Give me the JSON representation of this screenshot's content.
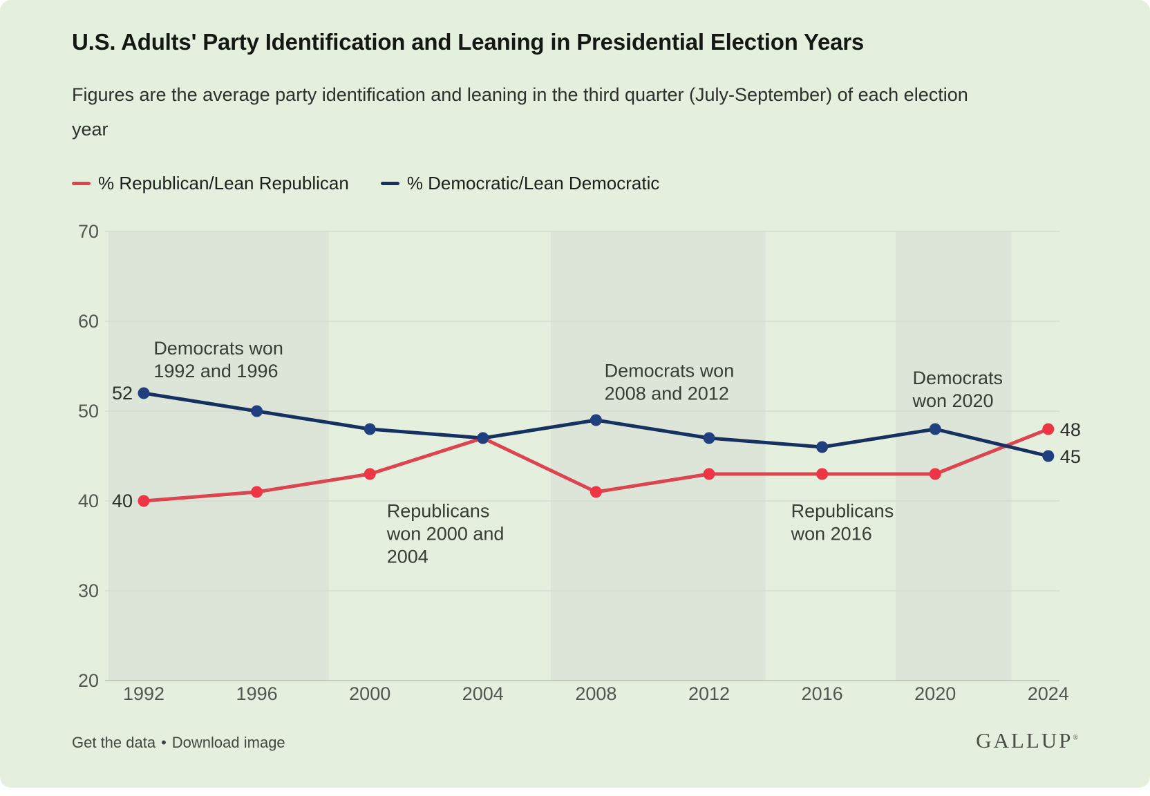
{
  "header": {
    "title": "U.S. Adults' Party Identification and Leaning in Presidential Election Years",
    "subtitle": "Figures are the average party identification and leaning in the third quarter (July-September) of each election year",
    "subtitle_lines": [
      "Figures are the average party identification and leaning in the third quarter (July-September) of each election",
      "year"
    ]
  },
  "chart_data": {
    "type": "line",
    "title": "U.S. Adults' Party Identification and Leaning in Presidential Election Years",
    "xlabel": "",
    "ylabel": "",
    "x": [
      1992,
      1996,
      2000,
      2004,
      2008,
      2012,
      2016,
      2020,
      2024
    ],
    "series": [
      {
        "name": "% Republican/Lean Republican",
        "values": [
          40,
          41,
          43,
          47,
          41,
          43,
          43,
          43,
          48
        ],
        "color": "#dc4450",
        "dot_color": "#ee3545",
        "first_point_label": "40",
        "last_point_label": "48"
      },
      {
        "name": "% Democratic/Lean Democratic",
        "values": [
          52,
          50,
          48,
          47,
          49,
          47,
          46,
          48,
          45
        ],
        "color": "#16315f",
        "dot_color": "#1f3f7f",
        "first_point_label": "52",
        "last_point_label": "45"
      }
    ],
    "ylim": [
      20,
      70
    ],
    "yticks": [
      20,
      30,
      40,
      50,
      60,
      70
    ],
    "grid": true,
    "legend_position": "top",
    "bands": [
      {
        "from_year": 1990.75,
        "to_year": 1998.55
      },
      {
        "from_year": 2006.4,
        "to_year": 2014.0
      },
      {
        "from_year": 2018.6,
        "to_year": 2022.7
      }
    ],
    "annotations": [
      {
        "year": 1992.35,
        "value": 56.3,
        "lines": [
          "Democrats won",
          "1992 and 1996"
        ]
      },
      {
        "year": 2000.6,
        "value": 38.2,
        "lines": [
          "Republicans",
          "won 2000 and",
          "2004"
        ]
      },
      {
        "year": 2008.3,
        "value": 53.8,
        "lines": [
          "Democrats won",
          "2008 and 2012"
        ]
      },
      {
        "year": 2014.9,
        "value": 38.2,
        "lines": [
          "Republicans",
          "won 2016"
        ]
      },
      {
        "year": 2019.2,
        "value": 53.0,
        "lines": [
          "Democrats",
          "won 2020"
        ]
      }
    ]
  },
  "footer": {
    "links": [
      "Get the data",
      "Download image"
    ],
    "separator": "•",
    "brand": "GALLUP",
    "brand_mark": "®"
  },
  "colors": {
    "background": "#e4efde",
    "band": "#dde5d9",
    "grid": "#cdd5c8",
    "axis": "#b7c1b2",
    "tick_text": "#51564f",
    "annotation_text": "#383c33"
  }
}
